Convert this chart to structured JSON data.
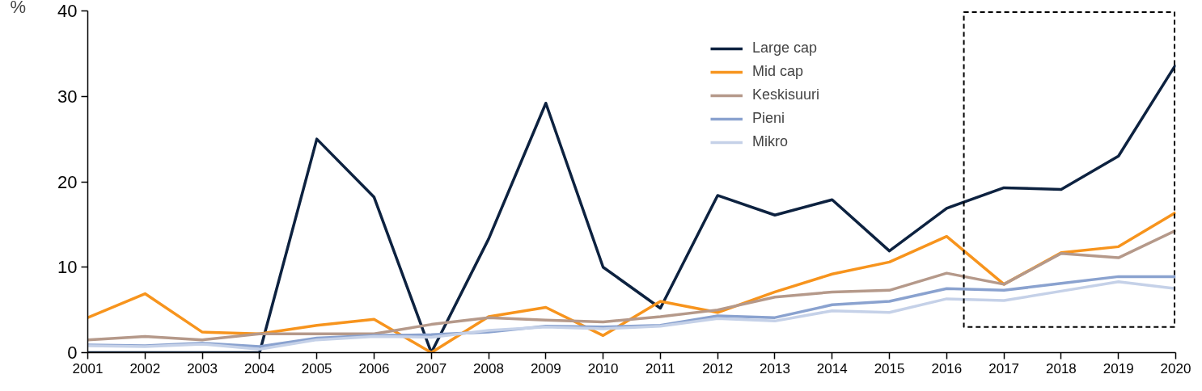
{
  "chart_data": {
    "type": "line",
    "ylabel": "%",
    "categories": [
      "2001",
      "2002",
      "2003",
      "2004",
      "2005",
      "2006",
      "2007",
      "2008",
      "2009",
      "2010",
      "2011",
      "2012",
      "2013",
      "2014",
      "2015",
      "2016",
      "2017",
      "2018",
      "2019",
      "2020"
    ],
    "series": [
      {
        "name": "Large cap",
        "color": "#0d2240",
        "values": [
          0,
          0,
          0,
          0,
          25,
          18.2,
          0,
          13.3,
          29.2,
          10,
          5.2,
          18.4,
          16.1,
          17.9,
          11.9,
          16.9,
          19.3,
          19.1,
          23,
          33.7
        ]
      },
      {
        "name": "Mid cap",
        "color": "#f7941d",
        "values": [
          4.1,
          6.9,
          2.4,
          2.2,
          3.2,
          3.9,
          0,
          4.2,
          5.3,
          2.0,
          6.0,
          4.7,
          7.1,
          9.2,
          10.6,
          13.6,
          8.0,
          11.7,
          12.4,
          16.4
        ]
      },
      {
        "name": "Keskisuuri",
        "color": "#b5998a",
        "values": [
          1.5,
          1.9,
          1.5,
          2.2,
          2.2,
          2.2,
          3.3,
          4.1,
          3.8,
          3.6,
          4.2,
          5.0,
          6.5,
          7.1,
          7.3,
          9.3,
          8.0,
          11.6,
          11.1,
          14.3
        ]
      },
      {
        "name": "Pieni",
        "color": "#8aa2cf",
        "values": [
          0.9,
          0.8,
          1.1,
          0.7,
          1.7,
          2.0,
          2.1,
          2.4,
          3.1,
          3.0,
          3.2,
          4.3,
          4.1,
          5.6,
          6.0,
          7.5,
          7.3,
          8.1,
          8.9,
          8.9
        ]
      },
      {
        "name": "Mikro",
        "color": "#c5d1e8",
        "values": [
          0.8,
          0.7,
          1.0,
          0.4,
          1.5,
          1.9,
          1.8,
          2.6,
          3.0,
          2.8,
          3.1,
          4.0,
          3.7,
          4.9,
          4.7,
          6.3,
          6.1,
          7.2,
          8.3,
          7.5
        ]
      }
    ],
    "ylim": [
      0,
      40
    ],
    "yticks": [
      0,
      10,
      20,
      30,
      40
    ],
    "grid": false,
    "legend": "top",
    "marker": "none",
    "line_style": "solid"
  }
}
